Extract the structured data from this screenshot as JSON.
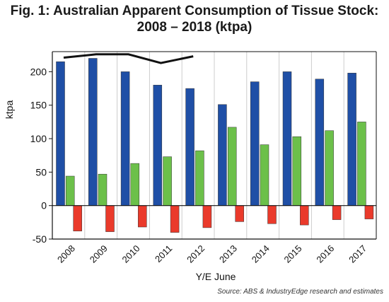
{
  "title_line1": "Fig. 1: Australian Apparent Consumption of Tissue Stock:",
  "title_line2": "2008 – 2018 (ktpa)",
  "source": "Source: ABS & IndustryEdge research and estimates",
  "colors": {
    "blue": "#1f4fa6",
    "green": "#6cc04a",
    "red": "#ea3a2b",
    "line": "#111111",
    "grid": "#cccccc"
  },
  "chart_data": {
    "type": "bar",
    "categories": [
      "2008",
      "2009",
      "2010",
      "2011",
      "2012",
      "2013",
      "2014",
      "2015",
      "2016",
      "2017"
    ],
    "series": [
      {
        "values": [
          215,
          220,
          200,
          180,
          175,
          151,
          185,
          200,
          189,
          198
        ],
        "color": "#1f4fa6"
      },
      {
        "values": [
          44,
          47,
          63,
          73,
          82,
          117,
          91,
          103,
          112,
          125
        ],
        "color": "#6cc04a"
      },
      {
        "values": [
          -38,
          -39,
          -32,
          -40,
          -33,
          -24,
          -27,
          -29,
          -21,
          -20
        ],
        "color": "#ea3a2b"
      }
    ],
    "line_values": [
      221,
      226,
      226,
      213,
      223,
      null,
      null,
      null,
      null,
      null
    ],
    "xlabel": "Y/E June",
    "ylabel": "ktpa",
    "ylim": [
      -50,
      230
    ],
    "yticks": [
      -50,
      0,
      50,
      100,
      150,
      200
    ],
    "grid": true
  }
}
